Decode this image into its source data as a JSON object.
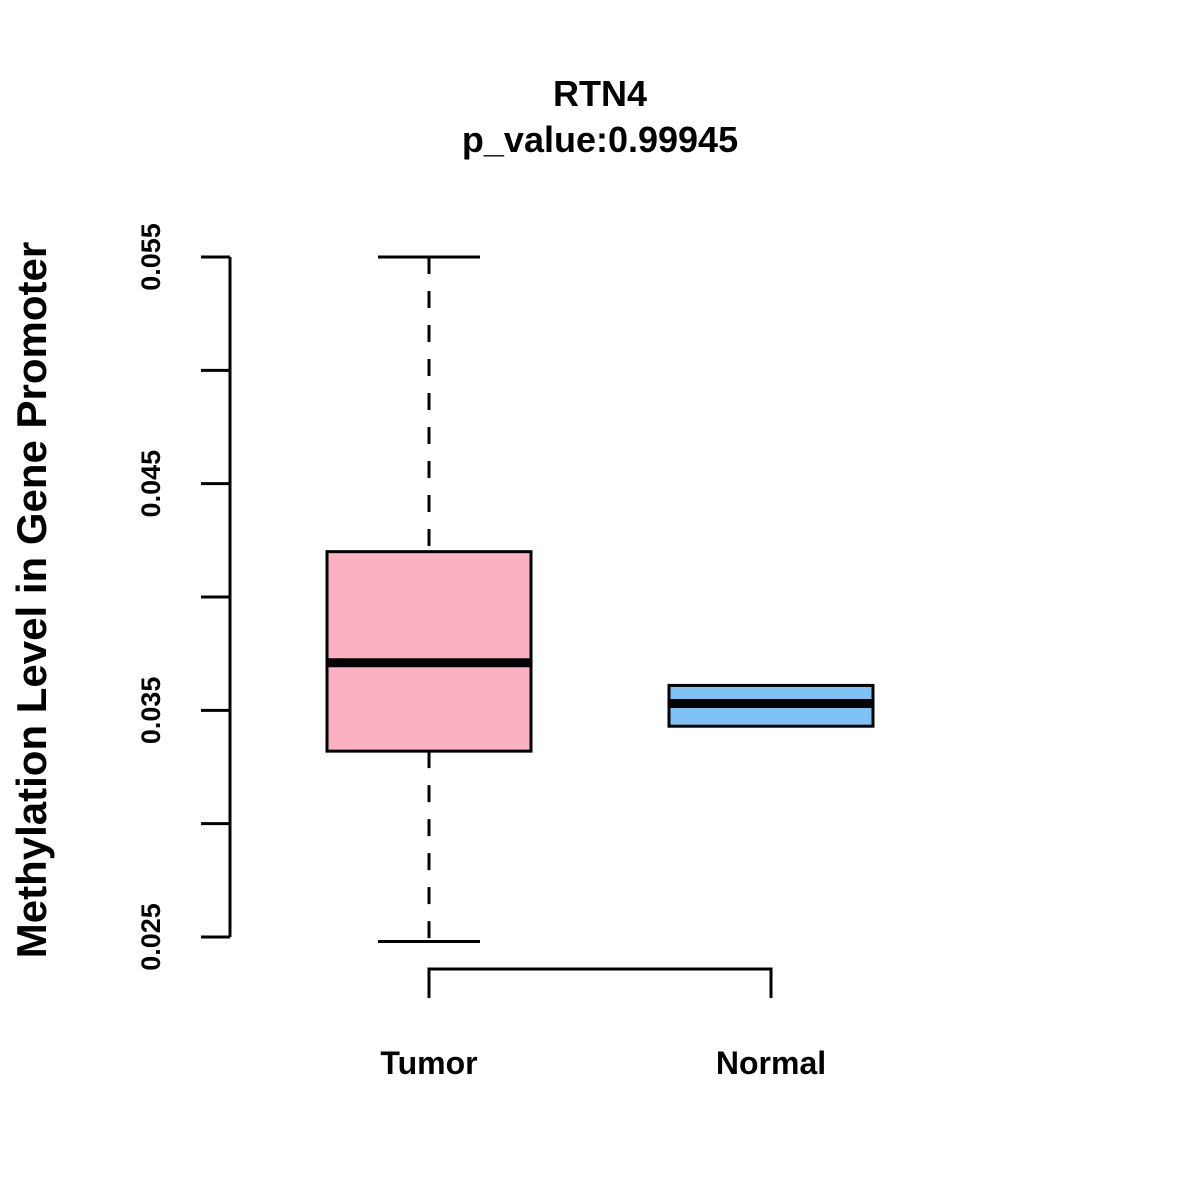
{
  "chart_data": {
    "type": "boxplot",
    "title": "RTN4",
    "subtitle": "p_value:0.99945",
    "xlabel": "",
    "ylabel": "Methylation Level in Gene Promoter",
    "ylim": [
      0.025,
      0.055
    ],
    "y_ticks": [
      0.025,
      0.03,
      0.035,
      0.04,
      0.045,
      0.05,
      0.055
    ],
    "y_tick_labels": [
      "0.025",
      "",
      "0.035",
      "",
      "0.045",
      "",
      "0.055"
    ],
    "categories": [
      "Tumor",
      "Normal"
    ],
    "boxes": [
      {
        "category": "Tumor",
        "whisker_low": 0.0248,
        "q1": 0.0332,
        "median": 0.0371,
        "q3": 0.042,
        "whisker_high": 0.055,
        "color": "#FBB1C2"
      },
      {
        "category": "Normal",
        "whisker_low": 0.0343,
        "q1": 0.0343,
        "median": 0.0353,
        "q3": 0.0361,
        "whisker_high": 0.0361,
        "color": "#7DC1F5"
      }
    ],
    "comparison_bracket": {
      "from": "Tumor",
      "to": "Normal"
    },
    "grid": false
  }
}
